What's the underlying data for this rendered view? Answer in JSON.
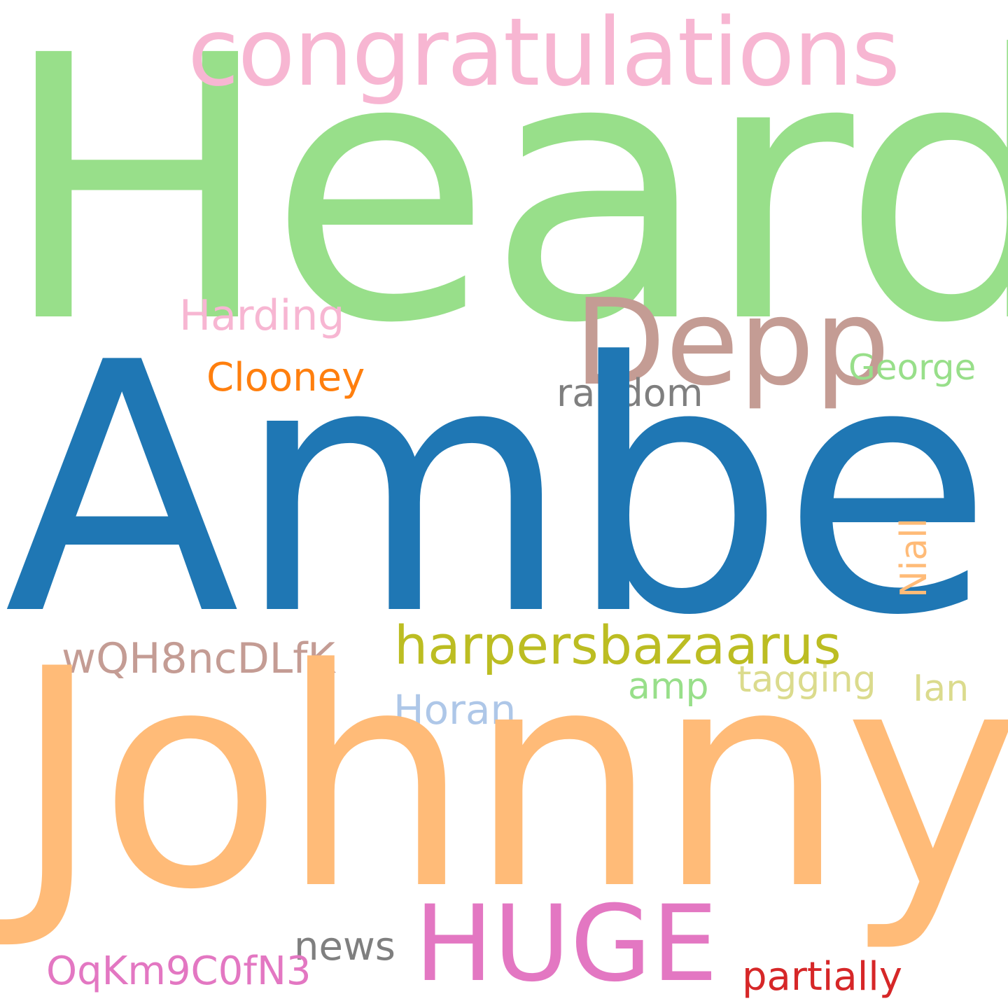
{
  "word_cloud": {
    "background": "#ffffff",
    "words": {
      "heard": {
        "text": "Heard",
        "color": "#98df8a"
      },
      "congratulations": {
        "text": "congratulations",
        "color": "#f7b6d2"
      },
      "depp": {
        "text": "Depp",
        "color": "#c49c94"
      },
      "harding": {
        "text": "Harding",
        "color": "#f7b6d2"
      },
      "george": {
        "text": "George",
        "color": "#98df8a"
      },
      "clooney": {
        "text": "Clooney",
        "color": "#ff7f0e"
      },
      "random": {
        "text": "random",
        "color": "#7f7f7f"
      },
      "amber": {
        "text": "Amber",
        "color": "#1f77b4"
      },
      "harpersbazaarus": {
        "text": "harpersbazaarus",
        "color": "#bcbd22"
      },
      "wqh8ncdlfk": {
        "text": "wQH8ncDLfK",
        "color": "#c49c94"
      },
      "niall": {
        "text": "Niall",
        "color": "#ffbb78"
      },
      "tagging": {
        "text": "tagging",
        "color": "#dbdb8d"
      },
      "amp": {
        "text": "amp",
        "color": "#98df8a"
      },
      "ian": {
        "text": "Ian",
        "color": "#dbdb8d"
      },
      "horan": {
        "text": "Horan",
        "color": "#aec7e8"
      },
      "johnny": {
        "text": "Johnny",
        "color": "#ffbb78"
      },
      "huge": {
        "text": "HUGE",
        "color": "#e377c2"
      },
      "news": {
        "text": "news",
        "color": "#7f7f7f"
      },
      "oqkm9c0fn3": {
        "text": "OqKm9C0fN3",
        "color": "#e377c2"
      },
      "partially": {
        "text": "partially",
        "color": "#d62728"
      }
    }
  }
}
